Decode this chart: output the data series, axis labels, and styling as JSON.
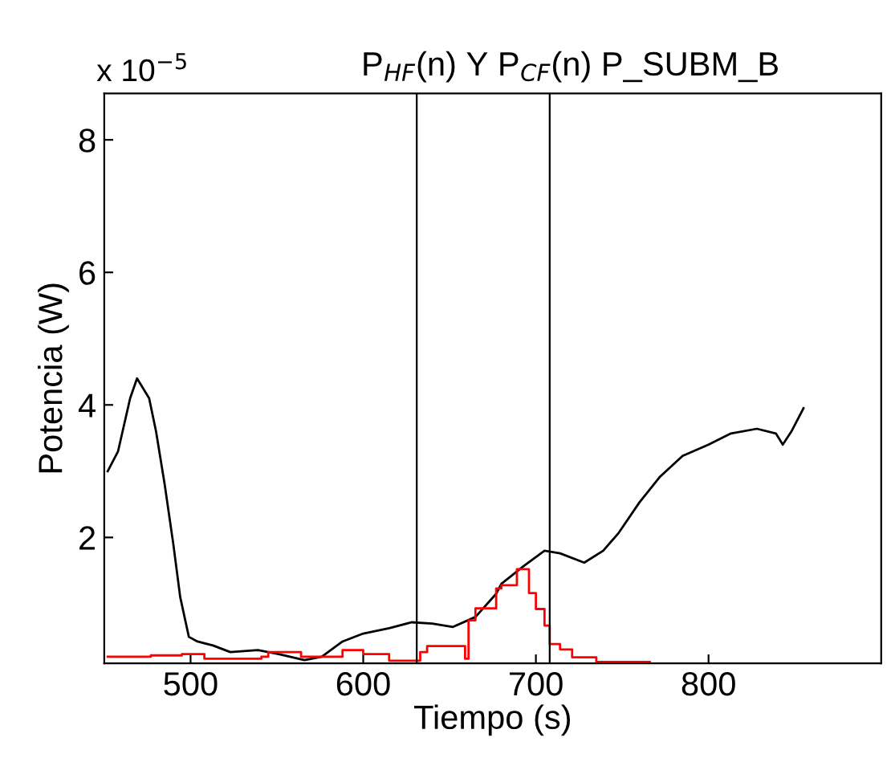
{
  "chart_data": {
    "type": "line",
    "title": "P$_{HF}$(n) Y P$_{CF}$(n) P_SUBM_B",
    "xlabel": "Tiempo (s)",
    "ylabel": "Potencia (W)",
    "annotations": [
      "x 10$^{−5}$"
    ],
    "xlim": [
      450,
      900
    ],
    "xticks": [
      500,
      600,
      700,
      800
    ],
    "ylim": [
      0.1,
      8.7
    ],
    "yticks": [
      2,
      4,
      6,
      8
    ],
    "grid": false,
    "legend": false,
    "ref_lines": [
      {
        "axis": "x",
        "value": 631,
        "color": "#000000"
      },
      {
        "axis": "x",
        "value": 708,
        "color": "#000000"
      }
    ],
    "series": [
      {
        "color": "#000000",
        "x": [
          452,
          458,
          465,
          469,
          476,
          480,
          485,
          490,
          494,
          499,
          504,
          513,
          523,
          539,
          551,
          566,
          576,
          588,
          600,
          615,
          628,
          640,
          652,
          665,
          677,
          680,
          693,
          705,
          714,
          728,
          739,
          748,
          760,
          772,
          785,
          800,
          813,
          828,
          839,
          843,
          848,
          855
        ],
        "values": [
          3.0,
          3.3,
          4.1,
          4.4,
          4.1,
          3.6,
          2.8,
          1.9,
          1.1,
          0.5,
          0.43,
          0.37,
          0.27,
          0.3,
          0.24,
          0.15,
          0.2,
          0.43,
          0.55,
          0.63,
          0.72,
          0.7,
          0.65,
          0.8,
          1.15,
          1.3,
          1.57,
          1.8,
          1.76,
          1.62,
          1.8,
          2.07,
          2.53,
          2.92,
          3.23,
          3.4,
          3.57,
          3.64,
          3.57,
          3.4,
          3.6,
          3.95
        ]
      },
      {
        "type": "step",
        "color": "#ff0000",
        "x": [
          452,
          477,
          495,
          508,
          523,
          541,
          545,
          564,
          588,
          600,
          615,
          628,
          633,
          637,
          647,
          659,
          661,
          665,
          677,
          680,
          689,
          696,
          700,
          705,
          708,
          714,
          721,
          735,
          754,
          766
        ],
        "values": [
          0.2,
          0.22,
          0.24,
          0.17,
          0.17,
          0.2,
          0.27,
          0.2,
          0.3,
          0.24,
          0.14,
          0.14,
          0.27,
          0.36,
          0.36,
          0.17,
          0.75,
          0.93,
          1.23,
          1.28,
          1.52,
          1.16,
          0.92,
          0.67,
          0.39,
          0.31,
          0.19,
          0.12,
          0.12,
          0.12
        ]
      }
    ]
  }
}
